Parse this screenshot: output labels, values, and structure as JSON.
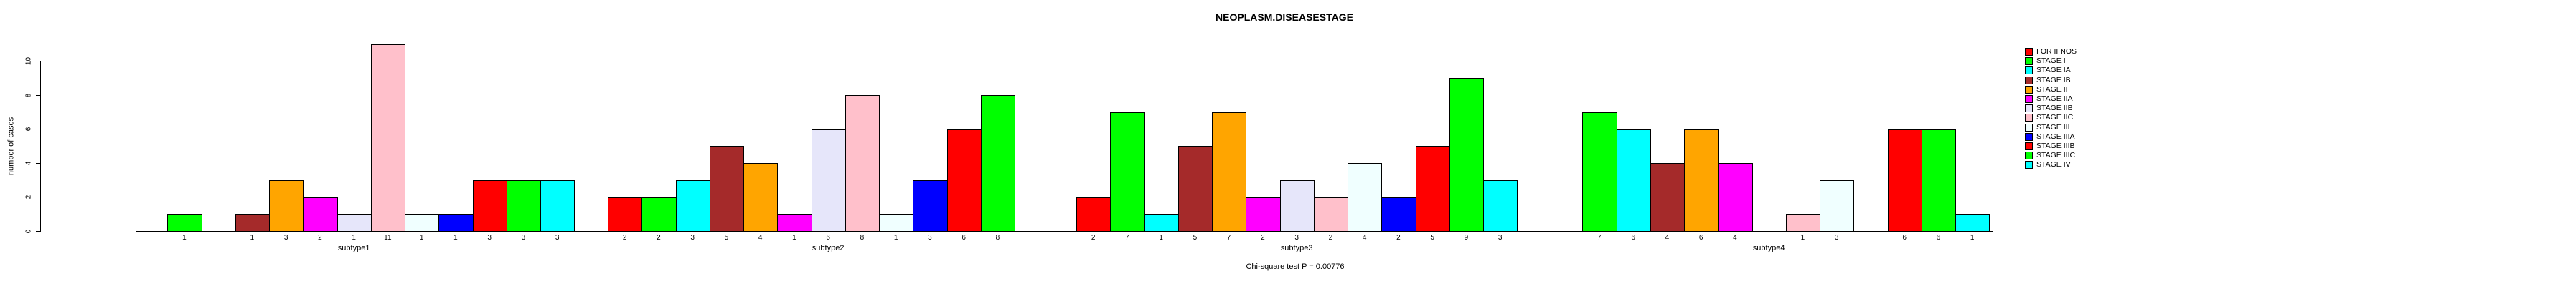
{
  "chart_data": {
    "type": "bar",
    "title": "NEOPLASM.DISEASESTAGE",
    "ylabel": "number of cases",
    "annotation": "Chi-square test P = 0.00776",
    "ylim": [
      0,
      10
    ],
    "yticks": [
      0,
      2,
      4,
      6,
      8,
      10
    ],
    "grid": false,
    "legend_position": "right",
    "bar_labels_shown": "values under each nonzero bar",
    "categories": [
      "subtype1",
      "subtype2",
      "subtype3",
      "subtype4"
    ],
    "series": [
      {
        "name": "I OR II NOS",
        "color": "#FF0000",
        "values": [
          0,
          2,
          2,
          0
        ]
      },
      {
        "name": "STAGE I",
        "color": "#00FF00",
        "values": [
          1,
          2,
          7,
          7
        ]
      },
      {
        "name": "STAGE IA",
        "color": "#00FFFF",
        "values": [
          0,
          3,
          1,
          6
        ]
      },
      {
        "name": "STAGE IB",
        "color": "#A52A2A",
        "values": [
          1,
          5,
          5,
          4
        ]
      },
      {
        "name": "STAGE II",
        "color": "#FFA500",
        "values": [
          3,
          4,
          7,
          6
        ]
      },
      {
        "name": "STAGE IIA",
        "color": "#FF00FF",
        "values": [
          2,
          1,
          2,
          4
        ]
      },
      {
        "name": "STAGE IIB",
        "color": "#E6E6FA",
        "values": [
          1,
          6,
          3,
          0
        ]
      },
      {
        "name": "STAGE IIC",
        "color": "#FFC0CB",
        "values": [
          11,
          8,
          2,
          1
        ]
      },
      {
        "name": "STAGE III",
        "color": "#F0FFFF",
        "values": [
          1,
          1,
          4,
          3
        ]
      },
      {
        "name": "STAGE IIIA",
        "color": "#0000FF",
        "values": [
          1,
          3,
          2,
          0
        ]
      },
      {
        "name": "STAGE IIIB",
        "color": "#FF0000",
        "values": [
          3,
          6,
          5,
          6
        ]
      },
      {
        "name": "STAGE IIIC",
        "color": "#00FF00",
        "values": [
          3,
          8,
          9,
          6
        ]
      },
      {
        "name": "STAGE IV",
        "color": "#00FFFF",
        "values": [
          3,
          0,
          3,
          1
        ]
      }
    ]
  }
}
